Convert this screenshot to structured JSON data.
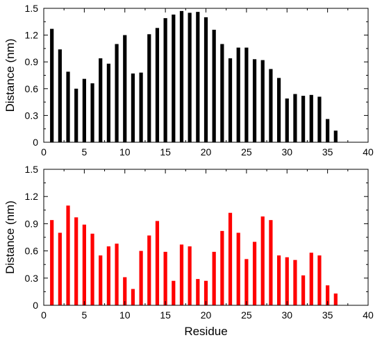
{
  "chart_data": [
    {
      "type": "bar",
      "color": "#000000",
      "xlabel": "",
      "ylabel": "Distance (nm)",
      "xlim": [
        0,
        40
      ],
      "ylim": [
        0,
        1.5
      ],
      "xticks": [
        "0",
        "5",
        "10",
        "15",
        "20",
        "25",
        "30",
        "35",
        "40"
      ],
      "yticks": [
        "0",
        "0.3",
        "0.6",
        "0.9",
        "1.2",
        "1.5"
      ],
      "grid": false,
      "x": [
        1,
        2,
        3,
        4,
        5,
        6,
        7,
        8,
        9,
        10,
        11,
        12,
        13,
        14,
        15,
        16,
        17,
        18,
        19,
        20,
        21,
        22,
        23,
        24,
        25,
        26,
        27,
        28,
        29,
        30,
        31,
        32,
        33,
        34,
        35,
        36
      ],
      "values": [
        1.27,
        1.04,
        0.79,
        0.6,
        0.71,
        0.66,
        0.94,
        0.88,
        1.1,
        1.2,
        0.77,
        0.78,
        1.21,
        1.28,
        1.39,
        1.43,
        1.47,
        1.45,
        1.46,
        1.4,
        1.26,
        1.1,
        0.94,
        1.06,
        1.06,
        0.93,
        0.92,
        0.82,
        0.72,
        0.49,
        0.54,
        0.52,
        0.53,
        0.51,
        0.26,
        0.13
      ]
    },
    {
      "type": "bar",
      "color": "#ff0000",
      "xlabel": "Residue",
      "ylabel": "Distance (nm)",
      "xlim": [
        0,
        40
      ],
      "ylim": [
        0,
        1.5
      ],
      "xticks": [
        "0",
        "5",
        "10",
        "15",
        "20",
        "25",
        "30",
        "35",
        "40"
      ],
      "yticks": [
        "0",
        "0.3",
        "0.6",
        "0.9",
        "1.2",
        "1.5"
      ],
      "grid": false,
      "x": [
        1,
        2,
        3,
        4,
        5,
        6,
        7,
        8,
        9,
        10,
        11,
        12,
        13,
        14,
        15,
        16,
        17,
        18,
        19,
        20,
        21,
        22,
        23,
        24,
        25,
        26,
        27,
        28,
        29,
        30,
        31,
        32,
        33,
        34,
        35,
        36
      ],
      "values": [
        0.94,
        0.8,
        1.1,
        0.97,
        0.89,
        0.79,
        0.55,
        0.65,
        0.68,
        0.31,
        0.18,
        0.6,
        0.77,
        0.93,
        0.59,
        0.27,
        0.67,
        0.65,
        0.29,
        0.27,
        0.59,
        0.82,
        1.02,
        0.8,
        0.51,
        0.7,
        0.98,
        0.94,
        0.55,
        0.53,
        0.5,
        0.33,
        0.58,
        0.55,
        0.22,
        0.13
      ]
    }
  ]
}
